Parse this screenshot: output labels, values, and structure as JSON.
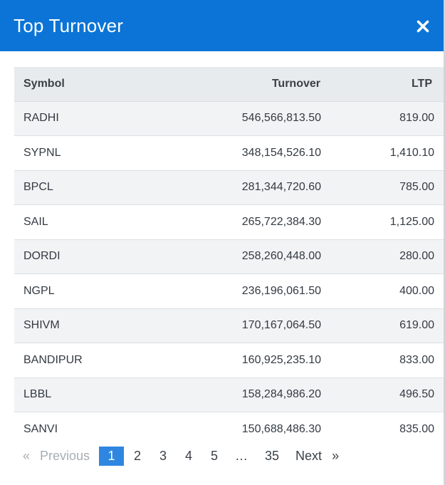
{
  "modal": {
    "title": "Top Turnover",
    "close_icon": "close-icon"
  },
  "table": {
    "headers": {
      "symbol": "Symbol",
      "turnover": "Turnover",
      "ltp": "LTP"
    },
    "rows": [
      {
        "symbol": "RADHI",
        "turnover": "546,566,813.50",
        "ltp": "819.00"
      },
      {
        "symbol": "SYPNL",
        "turnover": "348,154,526.10",
        "ltp": "1,410.10"
      },
      {
        "symbol": "BPCL",
        "turnover": "281,344,720.60",
        "ltp": "785.00"
      },
      {
        "symbol": "SAIL",
        "turnover": "265,722,384.30",
        "ltp": "1,125.00"
      },
      {
        "symbol": "DORDI",
        "turnover": "258,260,448.00",
        "ltp": "280.00"
      },
      {
        "symbol": "NGPL",
        "turnover": "236,196,061.50",
        "ltp": "400.00"
      },
      {
        "symbol": "SHIVM",
        "turnover": "170,167,064.50",
        "ltp": "619.00"
      },
      {
        "symbol": "BANDIPUR",
        "turnover": "160,925,235.10",
        "ltp": "833.00"
      },
      {
        "symbol": "LBBL",
        "turnover": "158,284,986.20",
        "ltp": "496.50"
      },
      {
        "symbol": "SANVI",
        "turnover": "150,688,486.30",
        "ltp": "835.00"
      }
    ]
  },
  "pagination": {
    "prev_arrow": "«",
    "prev_label": "Previous",
    "pages": [
      "1",
      "2",
      "3",
      "4",
      "5"
    ],
    "ellipsis": "…",
    "last_page": "35",
    "next_label": "Next",
    "next_arrow": "»",
    "active_page": "1"
  },
  "colors": {
    "header_bg": "#0b74d6",
    "active_page_bg": "#2f86e0",
    "table_header_bg": "#e8ebee"
  }
}
